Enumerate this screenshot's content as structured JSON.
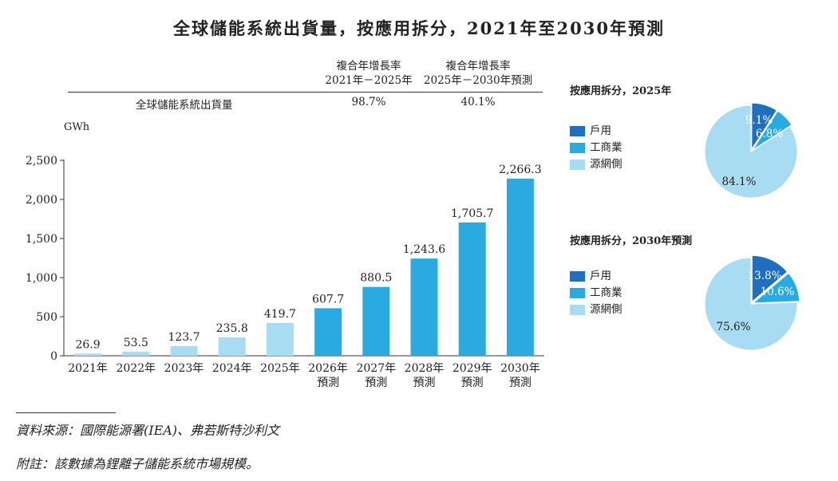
{
  "title": "全球儲能系統出貨量，按應用拆分，2021年至2030年預測",
  "cagr": {
    "header1_line1": "複合年增長率",
    "header1_line2": "2021年－2025年",
    "header2_line1": "複合年增長率",
    "header2_line2": "2025年－2030年預測",
    "row_label": "全球儲能系統出貨量",
    "value1": "98.7%",
    "value2": "40.1%"
  },
  "chart_data": [
    {
      "type": "bar",
      "unit_label": "GWh",
      "categories": [
        {
          "line1": "2021年",
          "line2": ""
        },
        {
          "line1": "2022年",
          "line2": ""
        },
        {
          "line1": "2023年",
          "line2": ""
        },
        {
          "line1": "2024年",
          "line2": ""
        },
        {
          "line1": "2025年",
          "line2": ""
        },
        {
          "line1": "2026年",
          "line2": "預測"
        },
        {
          "line1": "2027年",
          "line2": "預測"
        },
        {
          "line1": "2028年",
          "line2": "預測"
        },
        {
          "line1": "2029年",
          "line2": "預測"
        },
        {
          "line1": "2030年",
          "line2": "預測"
        }
      ],
      "values": [
        26.9,
        53.5,
        123.7,
        235.8,
        419.7,
        607.7,
        880.5,
        1243.6,
        1705.7,
        2266.3
      ],
      "value_labels": [
        "26.9",
        "53.5",
        "123.7",
        "235.8",
        "419.7",
        "607.7",
        "880.5",
        "1,243.6",
        "1,705.7",
        "2,266.3"
      ],
      "yticks": [
        "0",
        "500",
        "1,000",
        "1,500",
        "2,000",
        "2,500"
      ],
      "ylim": [
        0,
        2500
      ],
      "colors": {
        "historical": "#a8dcf2",
        "forecast": "#29abe2"
      },
      "forecast_from_index": 5
    },
    {
      "type": "pie",
      "title": "按應用拆分，2025年",
      "labels": [
        "戶用",
        "工商業",
        "源網側"
      ],
      "values": [
        9.1,
        6.8,
        84.1
      ],
      "value_labels": [
        "9.1%",
        "6.8%",
        "84.1%"
      ],
      "colors": [
        "#1f6fbf",
        "#29abe2",
        "#a8dcf2"
      ]
    },
    {
      "type": "pie",
      "title": "按應用拆分，2030年預測",
      "labels": [
        "戶用",
        "工商業",
        "源網側"
      ],
      "values": [
        13.8,
        10.6,
        75.6
      ],
      "value_labels": [
        "13.8%",
        "10.6%",
        "75.6%"
      ],
      "colors": [
        "#1f6fbf",
        "#29abe2",
        "#a8dcf2"
      ]
    }
  ],
  "footnotes": {
    "source": "資料來源：國際能源署(IEA)、弗若斯特沙利文",
    "note": "附註：該數據為鋰離子儲能系統市場規模。"
  }
}
